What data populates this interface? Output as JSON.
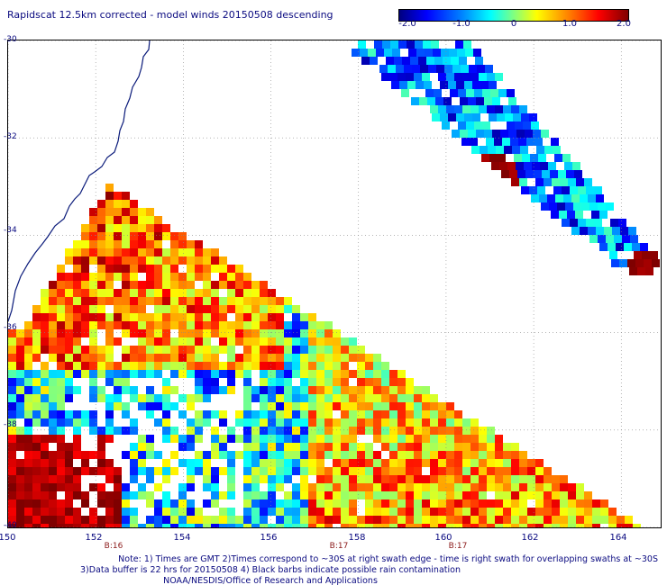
{
  "title": "Rapidscat 12.5km corrected - model winds 20150508 descending",
  "colorbar": {
    "ticks": [
      "-2.0",
      "-1.0",
      "0",
      "1.0",
      "2.0"
    ],
    "tick_values": [
      -2.0,
      -1.0,
      0,
      1.0,
      2.0
    ],
    "colors": [
      "#00007f",
      "#0000ff",
      "#0080ff",
      "#00ffff",
      "#80ff80",
      "#ffff00",
      "#ff8000",
      "#ff0000",
      "#7f0000"
    ]
  },
  "axes": {
    "lon_ticks": [
      "150",
      "152",
      "154",
      "156",
      "158",
      "160",
      "162",
      "164"
    ],
    "lat_ticks": [
      "-30",
      "-32",
      "-34",
      "-36",
      "-38",
      "-40"
    ],
    "lon_range": [
      150,
      164.9
    ],
    "lat_range": [
      -40,
      -30
    ]
  },
  "swath_times": [
    {
      "label": "B:16",
      "lon": 152.4
    },
    {
      "label": "B:17",
      "lon": 157.4
    },
    {
      "label": "B:17",
      "lon": 160.4
    }
  ],
  "notes": {
    "line1": "Note: 1) Times are GMT 2)Times correspond to ~30S at right swath edge - time is right swath for overlapping swaths at ~30S",
    "line2": "3)Data buffer is 22 hrs for 20150508 4) Black barbs indicate possible rain contamination",
    "line3": "NOAA/NESDIS/Office of Research and Applications"
  },
  "colors": {
    "text": "#0a0a80",
    "coast": "#0a1a7a",
    "grid": "#888888",
    "time_label": "#8b1a1a"
  }
}
